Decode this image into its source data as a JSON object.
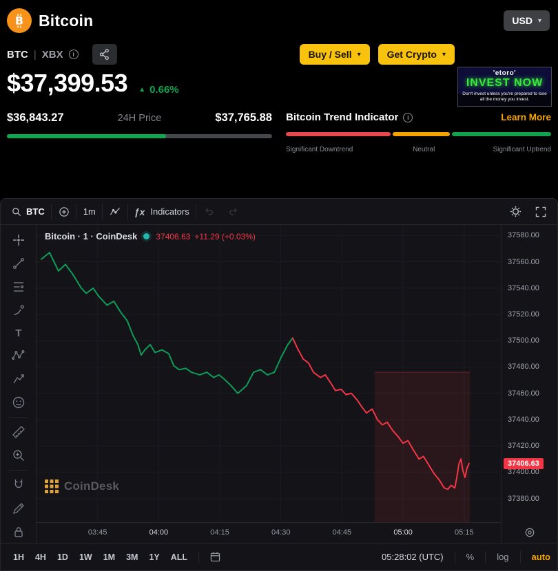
{
  "header": {
    "title": "Bitcoin",
    "currency": "USD",
    "pair": "BTC",
    "pair_separator": "|",
    "index": "XBX",
    "buy_sell_label": "Buy / Sell",
    "get_crypto_label": "Get Crypto",
    "price": "$37,399.53",
    "change_percent": "0.66%",
    "change_direction": "up",
    "range_low": "$36,843.27",
    "range_label": "24H Price",
    "range_high": "$37,765.88",
    "range_position": 0.6,
    "trend": {
      "title": "Bitcoin Trend Indicator",
      "learn_more": "Learn More",
      "segments": [
        {
          "name": "downtrend",
          "color": "#E5484D",
          "width": "40%"
        },
        {
          "name": "neutral",
          "color": "#F5A300",
          "width": "22%"
        },
        {
          "name": "uptrend",
          "color": "#12A150",
          "width": "38%"
        }
      ],
      "labels": [
        "Significant Downtrend",
        "Neutral",
        "Significant Uptrend"
      ]
    },
    "ad": {
      "brand": "'etoro'",
      "headline": "INVEST NOW",
      "disclaimer": "Don't invest unless you're prepared to lose all the money you invest."
    }
  },
  "chart_toolbar": {
    "symbol": "BTC",
    "interval": "1m",
    "indicators_label": "Indicators"
  },
  "legend": {
    "title": "Bitcoin · 1 · CoinDesk",
    "price": "37406.63",
    "change": "+11.29 (+0.03%)"
  },
  "watermark_label": "CoinDesk",
  "bottom_toolbar": {
    "ranges": [
      "1H",
      "4H",
      "1D",
      "1W",
      "1M",
      "3M",
      "1Y",
      "ALL"
    ],
    "clock": "05:28:02 (UTC)",
    "percent_label": "%",
    "log_label": "log",
    "auto_label": "auto"
  },
  "colors": {
    "bitcoin_orange": "#F7931A",
    "accent_yellow": "#F9C20C",
    "learn_more_orange": "#F7A600",
    "up_green": "#0CA750",
    "chart_up_green": "#0E9D58",
    "chart_down_red": "#F23645",
    "badge_red": "#F23645",
    "ad_green": "#39E639"
  },
  "icons": {
    "bitcoin-logo": "B with ticks in orange circle",
    "caret-down-icon": "▾",
    "info-icon": "i in circle",
    "share-icon": "three connected nodes",
    "up-arrow-icon": "▲",
    "search-icon": "magnifier",
    "compare-plus-icon": "plus in circle",
    "chart-style-icon": "line chart glyph",
    "indicators-fx-icon": "ƒx",
    "undo-icon": "curved arrow left",
    "redo-icon": "curved arrow right",
    "settings-gear-icon": "gear",
    "fullscreen-icon": "corner brackets",
    "crosshair-icon": "crosshair",
    "trend-line-icon": "diagonal line with dots",
    "fib-retracement-icon": "stacked horizontal lines",
    "brush-icon": "brush stroke",
    "text-tool-icon": "T",
    "pattern-icon": "zigzag with nodes",
    "forecast-icon": "projection arrow",
    "emoji-icon": "smiley face",
    "ruler-icon": "diagonal ruler",
    "zoom-in-icon": "magnifier with plus",
    "magnet-icon": "horseshoe magnet",
    "draw-icon": "pencil",
    "lock-icon": "padlock",
    "calendar-icon": "go-to-date calendar",
    "target-icon": "concentric target",
    "status-dot": "teal market-status dot"
  },
  "chart_data": {
    "type": "line",
    "title": "Bitcoin · 1 · CoinDesk",
    "x_unit": "minutes since 03:30 UTC",
    "xlim": [
      0,
      114
    ],
    "ylim": [
      37362,
      37588
    ],
    "grid": true,
    "last_price": 37406.63,
    "last_price_label": "37406.63",
    "x_ticks": [
      {
        "m": 15,
        "label": "03:45"
      },
      {
        "m": 30,
        "label": "04:00",
        "strong": true
      },
      {
        "m": 45,
        "label": "04:15"
      },
      {
        "m": 60,
        "label": "04:30"
      },
      {
        "m": 75,
        "label": "04:45"
      },
      {
        "m": 90,
        "label": "05:00",
        "strong": true
      },
      {
        "m": 105,
        "label": "05:15"
      }
    ],
    "y_ticks": [
      {
        "value": 37580,
        "label": "37580.00"
      },
      {
        "value": 37560,
        "label": "37560.00"
      },
      {
        "value": 37540,
        "label": "37540.00"
      },
      {
        "value": 37520,
        "label": "37520.00"
      },
      {
        "value": 37500,
        "label": "37500.00"
      },
      {
        "value": 37480,
        "label": "37480.00"
      },
      {
        "value": 37460,
        "label": "37460.00"
      },
      {
        "value": 37440,
        "label": "37440.00"
      },
      {
        "value": 37420,
        "label": "37420.00"
      },
      {
        "value": 37400,
        "label": "37400.00"
      },
      {
        "value": 37380,
        "label": "37380.00"
      }
    ],
    "shaded_region": {
      "x": [
        83,
        106.4
      ],
      "price": [
        37362,
        37476
      ],
      "fill": "rgba(242,54,69,0.10)",
      "edge": "rgba(242,54,69,0.35)"
    },
    "series": [
      {
        "name": "uptrend-segment",
        "color": "#0E9D58",
        "points": [
          [
            1.2,
            37562
          ],
          [
            3.2,
            37567
          ],
          [
            5.4,
            37553
          ],
          [
            7.1,
            37558
          ],
          [
            8.8,
            37551
          ],
          [
            11,
            37540
          ],
          [
            12.2,
            37536
          ],
          [
            13.9,
            37540
          ],
          [
            15.2,
            37534
          ],
          [
            17.3,
            37527
          ],
          [
            19,
            37530
          ],
          [
            20.6,
            37522
          ],
          [
            22.3,
            37515
          ],
          [
            23.7,
            37504
          ],
          [
            24.9,
            37497
          ],
          [
            25.7,
            37489
          ],
          [
            26.6,
            37493
          ],
          [
            27.9,
            37497
          ],
          [
            29.1,
            37491
          ],
          [
            30.8,
            37493
          ],
          [
            32.5,
            37490
          ],
          [
            33.7,
            37481
          ],
          [
            35,
            37478
          ],
          [
            36.7,
            37479
          ],
          [
            38,
            37476
          ],
          [
            40.1,
            37474
          ],
          [
            41.8,
            37476
          ],
          [
            43.5,
            37472
          ],
          [
            44.8,
            37474
          ],
          [
            46,
            37471
          ],
          [
            47.7,
            37466
          ],
          [
            49.4,
            37460
          ],
          [
            50.2,
            37462
          ],
          [
            51.6,
            37466
          ],
          [
            53.3,
            37476
          ],
          [
            55,
            37478
          ],
          [
            56.7,
            37474
          ],
          [
            58.4,
            37476
          ],
          [
            60,
            37487
          ],
          [
            61.7,
            37497
          ],
          [
            62.9,
            37502
          ]
        ]
      },
      {
        "name": "downtrend-segment",
        "color": "#F23645",
        "points": [
          [
            62.9,
            37502
          ],
          [
            64.1,
            37494
          ],
          [
            65.5,
            37486
          ],
          [
            66.8,
            37483
          ],
          [
            68,
            37476
          ],
          [
            69.7,
            37472
          ],
          [
            70.9,
            37474
          ],
          [
            72.2,
            37468
          ],
          [
            73.4,
            37462
          ],
          [
            74.8,
            37463
          ],
          [
            76,
            37459
          ],
          [
            77.3,
            37460
          ],
          [
            78.7,
            37455
          ],
          [
            79.8,
            37450
          ],
          [
            81,
            37445
          ],
          [
            82.4,
            37448
          ],
          [
            83.7,
            37440
          ],
          [
            84.9,
            37436
          ],
          [
            86.1,
            37438
          ],
          [
            87.4,
            37432
          ],
          [
            88.8,
            37427
          ],
          [
            90,
            37422
          ],
          [
            91.2,
            37424
          ],
          [
            92.5,
            37417
          ],
          [
            93.9,
            37410
          ],
          [
            95,
            37412
          ],
          [
            96.2,
            37406
          ],
          [
            97.6,
            37399
          ],
          [
            98.9,
            37394
          ],
          [
            100.1,
            37388
          ],
          [
            101,
            37387
          ],
          [
            101.8,
            37390
          ],
          [
            102.7,
            37388
          ],
          [
            103.2,
            37396
          ],
          [
            103.7,
            37406
          ],
          [
            104.2,
            37410
          ],
          [
            104.7,
            37401
          ],
          [
            105.2,
            37396
          ],
          [
            105.7,
            37403
          ],
          [
            106.2,
            37406.63
          ]
        ]
      }
    ]
  }
}
